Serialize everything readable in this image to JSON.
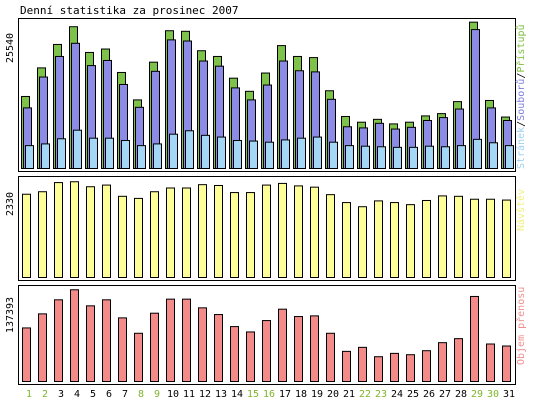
{
  "title": "Denní statistika za prosinec 2007",
  "chart_data": [
    {
      "type": "bar",
      "name": "top",
      "y_max_label": "25540",
      "ylim": [
        0,
        25540
      ],
      "categories": [
        "1",
        "2",
        "3",
        "4",
        "5",
        "6",
        "7",
        "8",
        "9",
        "10",
        "11",
        "12",
        "13",
        "14",
        "15",
        "16",
        "17",
        "18",
        "19",
        "20",
        "21",
        "22",
        "23",
        "24",
        "25",
        "26",
        "27",
        "28",
        "29",
        "30",
        "31"
      ],
      "weekend_days": [
        "1",
        "2",
        "8",
        "9",
        "15",
        "16",
        "22",
        "23",
        "29",
        "30"
      ],
      "legend": [
        {
          "name": "Stránek",
          "color": "#a0d0f0"
        },
        {
          "name": "Souborů",
          "color": "#8080e0"
        },
        {
          "name": "Přístupů",
          "color": "#80c040"
        }
      ],
      "separator": "/",
      "series": [
        {
          "name": "Přístupů",
          "color": "#7fc24b",
          "values": [
            12600,
            17600,
            21700,
            24800,
            20300,
            20900,
            16800,
            12000,
            18600,
            24100,
            24000,
            20600,
            19600,
            15800,
            13500,
            16700,
            21500,
            19600,
            19400,
            13600,
            9100,
            8100,
            8600,
            7800,
            8100,
            9200,
            9600,
            11700,
            25600,
            11900,
            9000
          ]
        },
        {
          "name": "Souborů",
          "color": "#8c8ce6",
          "values": [
            10600,
            16000,
            19600,
            21900,
            18000,
            18900,
            14700,
            10700,
            17000,
            22500,
            22300,
            18800,
            17900,
            14100,
            12000,
            14600,
            18800,
            17100,
            16900,
            12100,
            7300,
            7100,
            7900,
            6900,
            7200,
            8400,
            8900,
            10400,
            24300,
            10600,
            8400
          ]
        },
        {
          "name": "Stránek",
          "color": "#a6d6f6",
          "values": [
            4000,
            4300,
            5200,
            6700,
            5300,
            5300,
            4900,
            4000,
            4300,
            6000,
            6600,
            5800,
            5500,
            4900,
            4800,
            4600,
            5000,
            5300,
            5500,
            4600,
            4000,
            3900,
            3800,
            3700,
            3700,
            3900,
            3800,
            4000,
            5100,
            4500,
            4000
          ]
        }
      ]
    },
    {
      "type": "bar",
      "name": "visits",
      "y_max_label": "2330",
      "ylim": [
        0,
        2330
      ],
      "categories": [
        "1",
        "2",
        "3",
        "4",
        "5",
        "6",
        "7",
        "8",
        "9",
        "10",
        "11",
        "12",
        "13",
        "14",
        "15",
        "16",
        "17",
        "18",
        "19",
        "20",
        "21",
        "22",
        "23",
        "24",
        "25",
        "26",
        "27",
        "28",
        "29",
        "30",
        "31"
      ],
      "legend": [
        {
          "name": "Návštěv",
          "color": "#f0f080"
        }
      ],
      "series": [
        {
          "name": "Návštěv",
          "color": "#ffff99",
          "values": [
            2000,
            2060,
            2280,
            2300,
            2180,
            2220,
            1950,
            1900,
            2060,
            2150,
            2150,
            2230,
            2210,
            2040,
            2040,
            2220,
            2260,
            2200,
            2170,
            1990,
            1800,
            1700,
            1840,
            1800,
            1750,
            1850,
            1960,
            1950,
            1880,
            1880,
            1860
          ]
        }
      ]
    },
    {
      "type": "bar",
      "name": "transfer",
      "y_max_label": "137393",
      "ylim": [
        0,
        137393
      ],
      "categories": [
        "1",
        "2",
        "3",
        "4",
        "5",
        "6",
        "7",
        "8",
        "9",
        "10",
        "11",
        "12",
        "13",
        "14",
        "15",
        "16",
        "17",
        "18",
        "19",
        "20",
        "21",
        "22",
        "23",
        "24",
        "25",
        "26",
        "27",
        "28",
        "29",
        "30",
        "31"
      ],
      "legend": [
        {
          "name": "Objem přenosu",
          "color": "#f09090"
        }
      ],
      "series": [
        {
          "name": "Objem přenosu",
          "color": "#f38b8b",
          "values": [
            80000,
            101000,
            122000,
            137000,
            113000,
            122000,
            95000,
            72000,
            102000,
            123000,
            123000,
            110000,
            100000,
            82000,
            74000,
            91000,
            108000,
            97000,
            98000,
            72000,
            45000,
            51000,
            37000,
            42000,
            40000,
            46000,
            58000,
            64000,
            127000,
            56000,
            53000
          ]
        }
      ]
    }
  ]
}
